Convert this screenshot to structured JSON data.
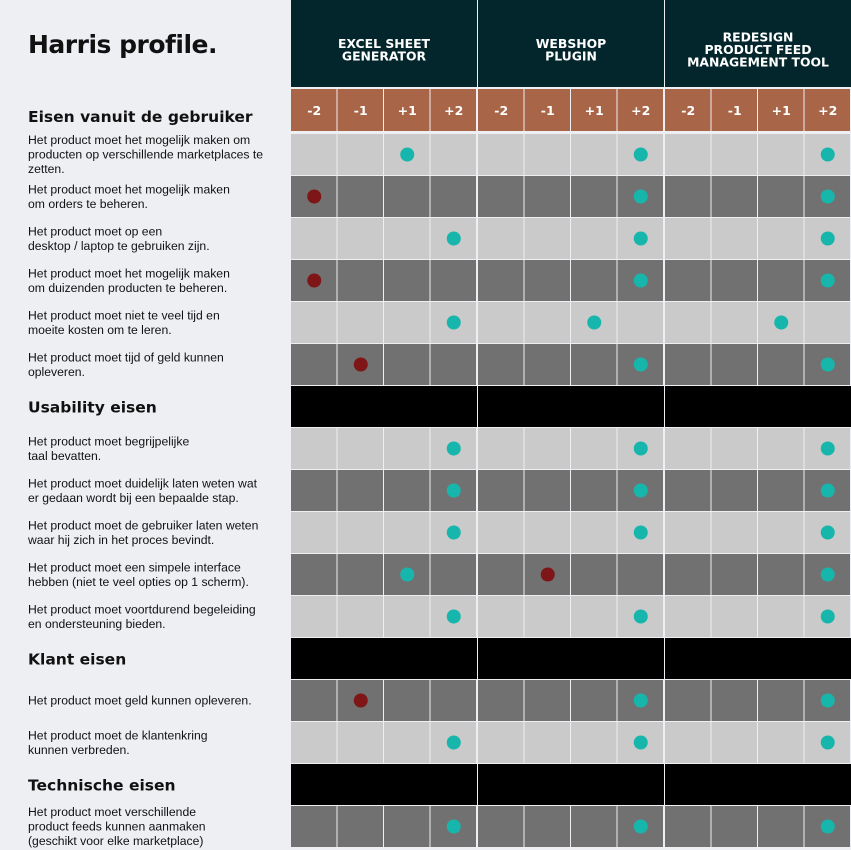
{
  "title": "Harris profile.",
  "chart_data": {
    "type": "table",
    "scale": [
      "-2",
      "-1",
      "+1",
      "+2"
    ],
    "projects": [
      {
        "name": "EXCEL SHEET GENERATOR",
        "lines": [
          "EXCEL SHEET",
          "GENERATOR"
        ]
      },
      {
        "name": "WEBSHOP PLUGIN",
        "lines": [
          "WEBSHOP",
          "PLUGIN"
        ]
      },
      {
        "name": "REDESIGN PRODUCT FEED MANAGEMENT TOOL",
        "lines": [
          "REDESIGN",
          "PRODUCT FEED",
          "MANAGEMENT TOOL"
        ]
      }
    ],
    "sections": [
      {
        "heading": "Eisen vanuit de gebruiker",
        "requirements": [
          {
            "lines": [
              "Het product moet het mogelijk maken om",
              "producten op verschillende marketplaces te",
              "zetten."
            ],
            "scores": [
              "+1",
              "+2",
              "+2"
            ]
          },
          {
            "lines": [
              "Het product moet het mogelijk maken",
              "om orders te beheren."
            ],
            "scores": [
              "-2",
              "+2",
              "+2"
            ]
          },
          {
            "lines": [
              "Het product moet op een",
              "desktop / laptop te gebruiken zijn."
            ],
            "scores": [
              "+2",
              "+2",
              "+2"
            ]
          },
          {
            "lines": [
              "Het product moet het mogelijk maken",
              "om duizenden producten te beheren."
            ],
            "scores": [
              "-2",
              "+2",
              "+2"
            ]
          },
          {
            "lines": [
              "Het product moet niet te veel tijd en",
              "moeite kosten om te leren."
            ],
            "scores": [
              "+2",
              "+1",
              "+1"
            ]
          },
          {
            "lines": [
              "Het product moet tijd of geld kunnen",
              "opleveren."
            ],
            "scores": [
              "-1",
              "+2",
              "+2"
            ]
          }
        ]
      },
      {
        "heading": "Usability eisen",
        "requirements": [
          {
            "lines": [
              "Het product moet begrijpelijke",
              "taal bevatten."
            ],
            "scores": [
              "+2",
              "+2",
              "+2"
            ]
          },
          {
            "lines": [
              "Het product moet duidelijk laten weten wat",
              "er gedaan wordt bij een bepaalde stap."
            ],
            "scores": [
              "+2",
              "+2",
              "+2"
            ]
          },
          {
            "lines": [
              "Het product moet de gebruiker laten weten",
              "waar hij zich in het proces bevindt."
            ],
            "scores": [
              "+2",
              "+2",
              "+2"
            ]
          },
          {
            "lines": [
              "Het product moet een simpele interface",
              "hebben (niet te veel opties op 1 scherm)."
            ],
            "scores": [
              "+1",
              "-1",
              "+2"
            ]
          },
          {
            "lines": [
              "Het product moet voortdurend begeleiding",
              "en ondersteuning bieden."
            ],
            "scores": [
              "+2",
              "+2",
              "+2"
            ]
          }
        ]
      },
      {
        "heading": "Klant eisen",
        "requirements": [
          {
            "lines": [
              "Het product moet geld kunnen opleveren."
            ],
            "scores": [
              "-1",
              "+2",
              "+2"
            ]
          },
          {
            "lines": [
              "Het product moet de klantenkring",
              "kunnen verbreden."
            ],
            "scores": [
              "+2",
              "+2",
              "+2"
            ]
          }
        ]
      },
      {
        "heading": "Technische eisen",
        "requirements": [
          {
            "lines": [
              "Het product moet verschillende",
              "product feeds kunnen aanmaken",
              "(geschikt voor elke marketplace)"
            ],
            "scores": [
              "+2",
              "+2",
              "+2"
            ]
          }
        ]
      }
    ]
  },
  "colors": {
    "background": "#eeeff3",
    "project_header": "#03262c",
    "scale_header": "#a86547",
    "row_light": "#cacaca",
    "row_dark": "#717171",
    "section_band": "#000000",
    "positive_dot": "#16b6ac",
    "negative_dot": "#7e1516"
  }
}
